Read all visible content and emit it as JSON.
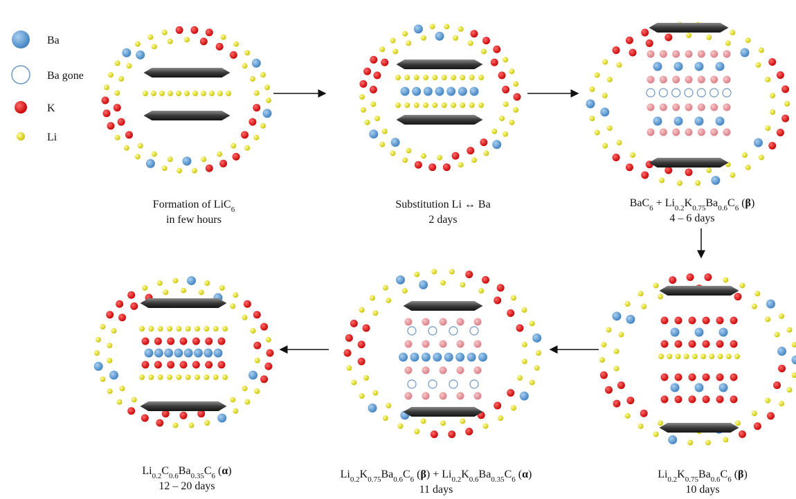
{
  "legend": [
    "Ba",
    "Ba gone",
    "K",
    "Li"
  ],
  "captions": [
    {
      "lines": [
        [
          "Formation of LiC",
          {
            "sub": "6"
          }
        ],
        [
          "in few hours"
        ]
      ]
    },
    {
      "lines": [
        [
          "Substitution Li ↔ Ba"
        ],
        [
          "2 days"
        ]
      ]
    },
    {
      "lines": [
        [
          "BaC",
          {
            "sub": "6"
          },
          " + Li",
          {
            "sub": "0.2"
          },
          "K",
          {
            "sub": "0.75"
          },
          "Ba",
          {
            "sub": "0.6"
          },
          "C",
          {
            "sub": "6"
          },
          " (",
          {
            "bold": "β"
          },
          ")"
        ],
        [
          "4 – 6 days"
        ]
      ]
    },
    {
      "lines": [
        [
          "Li",
          {
            "sub": "0.2"
          },
          "K",
          {
            "sub": "0.75"
          },
          "Ba",
          {
            "sub": "0.6"
          },
          "C",
          {
            "sub": "6"
          },
          " (",
          {
            "bold": "β"
          },
          ")"
        ],
        [
          "10 days"
        ]
      ]
    },
    {
      "lines": [
        [
          "Li",
          {
            "sub": "0.2"
          },
          "K",
          {
            "sub": "0.75"
          },
          "Ba",
          {
            "sub": "0.6"
          },
          "C",
          {
            "sub": "6"
          },
          " (",
          {
            "bold": "β"
          },
          ") + Li",
          {
            "sub": "0.2"
          },
          "K",
          {
            "sub": "0.6"
          },
          "Ba",
          {
            "sub": "0.35"
          },
          "C",
          {
            "sub": "6"
          },
          " (",
          {
            "bold": "α"
          },
          ")"
        ],
        [
          "11 days"
        ]
      ]
    },
    {
      "lines": [
        [
          "Li",
          {
            "sub": "0.2"
          },
          "C",
          {
            "sub": "0.6"
          },
          "Ba",
          {
            "sub": "0.35"
          },
          "C",
          {
            "sub": "6"
          },
          " (",
          {
            "bold": "α"
          },
          ")"
        ],
        [
          "12 – 20 days"
        ]
      ]
    }
  ]
}
